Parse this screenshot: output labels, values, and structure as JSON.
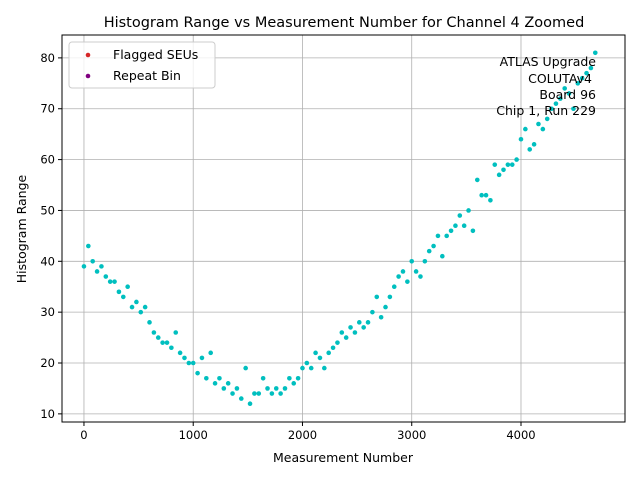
{
  "chart_data": {
    "type": "scatter",
    "title": "Histogram Range vs Measurement Number for Channel 4 Zoomed",
    "xlabel": "Measurement Number",
    "ylabel": "Histogram Range",
    "xlim": [
      -201,
      4952
    ],
    "ylim": [
      8.4,
      84.5
    ],
    "xticks": [
      0,
      1000,
      2000,
      3000,
      4000
    ],
    "yticks": [
      10,
      20,
      30,
      40,
      50,
      60,
      70,
      80
    ],
    "grid": true,
    "legend_placement": "top-left",
    "legend": [
      {
        "name": "Flagged SEUs",
        "color": "#d62728"
      },
      {
        "name": "Repeat Bin",
        "color": "#800080"
      }
    ],
    "annotation": [
      "ATLAS Upgrade",
      "COLUTAv4",
      "Board 96",
      "Chip 1, Run 229"
    ],
    "point_color": "#00bfbf",
    "x": [
      0,
      40,
      80,
      120,
      160,
      200,
      240,
      280,
      320,
      360,
      400,
      440,
      480,
      520,
      560,
      600,
      640,
      680,
      720,
      760,
      800,
      840,
      880,
      920,
      960,
      1000,
      1040,
      1080,
      1120,
      1160,
      1200,
      1240,
      1280,
      1320,
      1360,
      1400,
      1440,
      1480,
      1520,
      1560,
      1600,
      1640,
      1680,
      1720,
      1760,
      1800,
      1840,
      1880,
      1920,
      1960,
      2000,
      2040,
      2080,
      2120,
      2160,
      2200,
      2240,
      2280,
      2320,
      2360,
      2400,
      2440,
      2480,
      2520,
      2560,
      2600,
      2640,
      2680,
      2720,
      2760,
      2800,
      2840,
      2880,
      2920,
      2960,
      3000,
      3040,
      3080,
      3120,
      3160,
      3200,
      3240,
      3280,
      3320,
      3360,
      3400,
      3440,
      3480,
      3520,
      3560,
      3600,
      3640,
      3680,
      3720,
      3760,
      3800,
      3840,
      3880,
      3920,
      3960,
      4000,
      4040,
      4080,
      4120,
      4160,
      4200,
      4240,
      4280,
      4320,
      4360,
      4400,
      4440,
      4480,
      4520,
      4560,
      4600,
      4640,
      4680
    ],
    "y": [
      39,
      43,
      40,
      38,
      39,
      37,
      36,
      36,
      34,
      33,
      35,
      31,
      32,
      30,
      31,
      28,
      26,
      25,
      24,
      24,
      23,
      26,
      22,
      21,
      20,
      20,
      18,
      21,
      17,
      22,
      16,
      17,
      15,
      16,
      14,
      15,
      13,
      19,
      12,
      14,
      14,
      17,
      15,
      14,
      15,
      14,
      15,
      17,
      16,
      17,
      19,
      20,
      19,
      22,
      21,
      19,
      22,
      23,
      24,
      26,
      25,
      27,
      26,
      28,
      27,
      28,
      30,
      33,
      29,
      31,
      33,
      35,
      37,
      38,
      36,
      40,
      38,
      37,
      40,
      42,
      43,
      45,
      41,
      45,
      46,
      47,
      49,
      47,
      50,
      46,
      56,
      53,
      53,
      52,
      59,
      57,
      58,
      59,
      59,
      60,
      64,
      66,
      62,
      63,
      67,
      66,
      68,
      70,
      71,
      72,
      74,
      73,
      70,
      75,
      76,
      77,
      78,
      81
    ]
  }
}
